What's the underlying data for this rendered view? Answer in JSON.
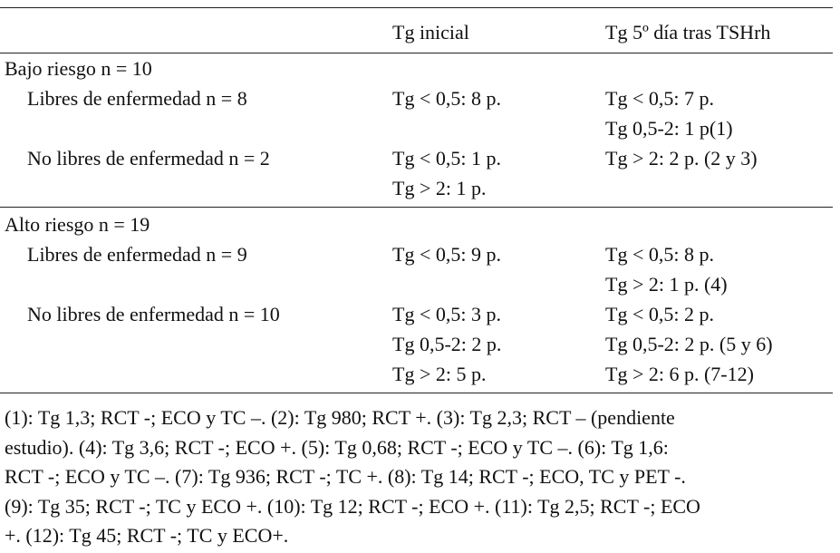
{
  "table": {
    "header": [
      "Tg inicial",
      "Tg 5º día tras TSHrh"
    ],
    "groups": [
      {
        "label": "Bajo riesgo n = 10",
        "rows": [
          {
            "label": "Libres de enfermedad n = 8",
            "initial": [
              "Tg < 0,5: 8 p."
            ],
            "day5": [
              "Tg < 0,5: 7 p.",
              "Tg 0,5-2: 1 p(1)"
            ]
          },
          {
            "label": "No libres de enfermedad n = 2",
            "initial": [
              "Tg < 0,5: 1 p.",
              "Tg > 2: 1 p."
            ],
            "day5": [
              "Tg > 2: 2 p. (2 y 3)"
            ]
          }
        ]
      },
      {
        "label": "Alto riesgo n = 19",
        "rows": [
          {
            "label": "Libres de enfermedad n = 9",
            "initial": [
              "Tg < 0,5: 9 p."
            ],
            "day5": [
              "Tg < 0,5: 8 p.",
              "Tg > 2: 1 p. (4)"
            ]
          },
          {
            "label": "No libres de enfermedad n = 10",
            "initial": [
              "Tg < 0,5: 3 p.",
              "Tg 0,5-2: 2 p.",
              "Tg > 2: 5 p."
            ],
            "day5": [
              "Tg < 0,5: 2 p.",
              "Tg 0,5-2: 2 p. (5 y 6)",
              "Tg > 2: 6 p. (7-12)"
            ]
          }
        ]
      }
    ]
  },
  "footnote": [
    "(1): Tg 1,3; RCT -; ECO y TC –. (2): Tg 980; RCT +. (3): Tg 2,3; RCT – (pendiente",
    "estudio). (4): Tg 3,6; RCT -; ECO +. (5): Tg 0,68; RCT -; ECO y TC –. (6): Tg 1,6:",
    "RCT -; ECO y TC –. (7): Tg 936; RCT -; TC +. (8): Tg 14; RCT -; ECO, TC y PET -.",
    "(9): Tg 35; RCT -; TC y ECO +. (10): Tg 12; RCT -; ECO +. (11): Tg 2,5; RCT -; ECO",
    "+. (12): Tg 45; RCT -; TC y ECO+."
  ]
}
